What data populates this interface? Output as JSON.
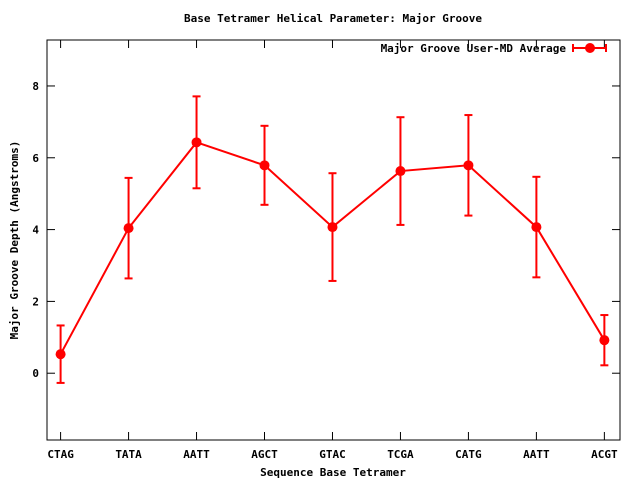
{
  "chart_data": {
    "type": "line",
    "title": "Base Tetramer Helical Parameter: Major Groove",
    "xlabel": "Sequence Base Tetramer",
    "ylabel": "Major Groove Depth (Angstroms)",
    "categories": [
      "CTAG",
      "TATA",
      "AATT",
      "AGCT",
      "GTAC",
      "TCGA",
      "CATG",
      "AATT",
      "ACGT"
    ],
    "xlim": [
      -0.2,
      8.23
    ],
    "ylim": [
      -1.86,
      9.28
    ],
    "yticks": [
      0,
      2,
      4,
      6,
      8
    ],
    "grid": false,
    "legend_position": "top-right",
    "series": [
      {
        "name": "Major Groove User-MD Average",
        "color": "#ff0000",
        "values": [
          0.53,
          4.04,
          6.43,
          5.79,
          4.07,
          5.63,
          5.79,
          4.07,
          0.92
        ],
        "errors": [
          0.8,
          1.4,
          1.28,
          1.1,
          1.5,
          1.5,
          1.4,
          1.4,
          0.7
        ]
      }
    ]
  }
}
